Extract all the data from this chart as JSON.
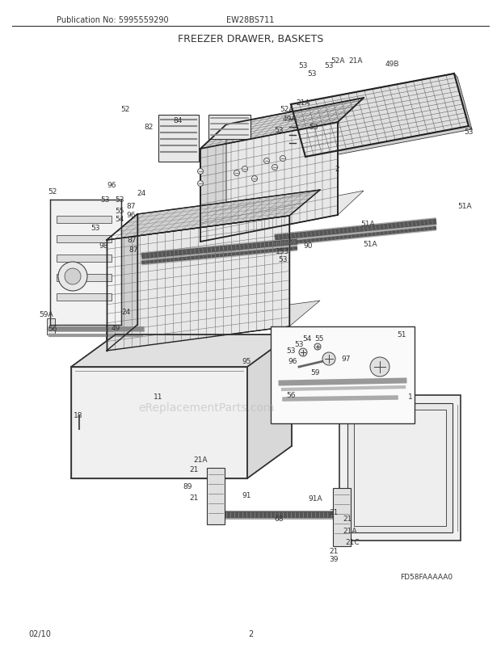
{
  "title": "FREEZER DRAWER, BASKETS",
  "pub_no": "Publication No: 5995559290",
  "model": "EW28BS711",
  "date": "02/10",
  "page": "2",
  "diagram_code": "FD58FAAAAA0",
  "bg_color": "#ffffff",
  "line_color": "#333333",
  "title_fontsize": 9,
  "header_fontsize": 7,
  "footer_fontsize": 7,
  "part_label_fontsize": 6.5,
  "fig_width": 6.2,
  "fig_height": 8.03,
  "watermark_text": "eReplacementParts.com",
  "watermark_color": "#bbbbbb",
  "watermark_fontsize": 10,
  "watermark_alpha": 0.6
}
